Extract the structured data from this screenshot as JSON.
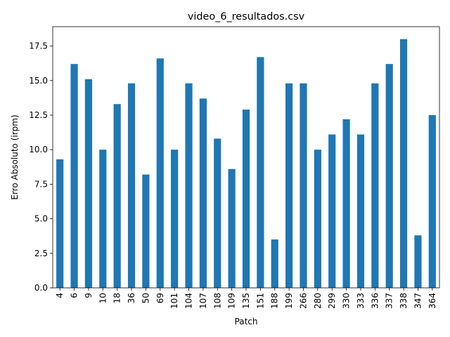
{
  "chart_data": {
    "type": "bar",
    "title": "video_6_resultados.csv",
    "xlabel": "Patch",
    "ylabel": "Erro Absoluto (irpm)",
    "categories": [
      "4",
      "6",
      "9",
      "10",
      "18",
      "36",
      "50",
      "69",
      "101",
      "104",
      "107",
      "108",
      "109",
      "135",
      "151",
      "188",
      "199",
      "266",
      "280",
      "299",
      "330",
      "333",
      "336",
      "337",
      "338",
      "347",
      "364"
    ],
    "values": [
      9.3,
      16.2,
      15.1,
      10.0,
      13.3,
      14.8,
      8.2,
      16.6,
      10.0,
      14.8,
      13.7,
      10.8,
      8.6,
      12.9,
      16.7,
      3.5,
      14.8,
      14.8,
      10.0,
      11.1,
      12.2,
      11.1,
      14.8,
      16.2,
      18.0,
      3.8,
      12.5
    ],
    "yticks": [
      "0.0",
      "2.5",
      "5.0",
      "7.5",
      "10.0",
      "12.5",
      "15.0",
      "17.5"
    ],
    "ylim": [
      0,
      18.9
    ],
    "bar_color": "#1f77b4",
    "grid": false,
    "legend": "none"
  }
}
